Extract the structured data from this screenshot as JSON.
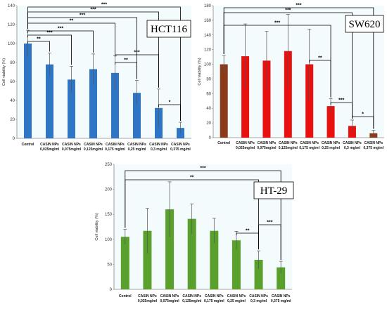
{
  "chart_data": [
    {
      "id": "hct116",
      "type": "bar",
      "title": "HCT116",
      "ylabel": "Cell viability (%)",
      "ylim": [
        0,
        140
      ],
      "yticks": [
        0,
        20,
        40,
        60,
        80,
        100,
        120,
        140
      ],
      "categories": [
        [
          "Control"
        ],
        [
          "CASIN NPs",
          "0,025mg/ml"
        ],
        [
          "CASIN NPs",
          "0,075mg/ml"
        ],
        [
          "CASIN NPs",
          "0,125mg/ml"
        ],
        [
          "CASIN NPs",
          "0,175 mg/ml"
        ],
        [
          "CASIN NPs",
          "0,25 mg/ml"
        ],
        [
          "CASIN NPs",
          "0,3 mg/ml"
        ],
        [
          "CASIN NPs",
          "0,375 mg/ml"
        ]
      ],
      "values": [
        100,
        78,
        62,
        73,
        69,
        48,
        32,
        11
      ],
      "errors": [
        14,
        12,
        14,
        16,
        18,
        13,
        20,
        6
      ],
      "colors": [
        "#2E75C6",
        "#2E75C6",
        "#2E75C6",
        "#2E75C6",
        "#2E75C6",
        "#2E75C6",
        "#2E75C6",
        "#2E75C6"
      ],
      "significance": [
        {
          "from": 0,
          "to": 7,
          "label": "***"
        },
        {
          "from": 0,
          "to": 6,
          "label": "***"
        },
        {
          "from": 0,
          "to": 5,
          "label": "***"
        },
        {
          "from": 0,
          "to": 4,
          "label": "**"
        },
        {
          "from": 0,
          "to": 3,
          "label": "***"
        },
        {
          "from": 0,
          "to": 2,
          "label": "***"
        },
        {
          "from": 0,
          "to": 1,
          "label": "**"
        },
        {
          "from": 4,
          "to": 5,
          "label": "**"
        },
        {
          "from": 4,
          "to": 6,
          "label": "***"
        },
        {
          "from": 6,
          "to": 7,
          "label": "*"
        }
      ]
    },
    {
      "id": "sw620",
      "type": "bar",
      "title": "SW620",
      "ylabel": "Cell viability (%)",
      "ylim": [
        0,
        180
      ],
      "yticks": [
        0,
        20,
        40,
        60,
        80,
        100,
        120,
        140,
        160,
        180
      ],
      "categories": [
        [
          "Control"
        ],
        [
          "CASIN NPs",
          "0,025mg/ml"
        ],
        [
          "CASIN NPs",
          "0,075mg/ml"
        ],
        [
          "CASIN NPs",
          "0,125mg/ml"
        ],
        [
          "CASIN NPs",
          "0,175 mg/ml"
        ],
        [
          "CASIN NPs",
          "0,25 mg/ml"
        ],
        [
          "CASIN NPs",
          "0,3 mg/ml"
        ],
        [
          "CASIN NPs",
          "0,375 mg/ml"
        ]
      ],
      "values": [
        100,
        111,
        105,
        118,
        100,
        43,
        16,
        6
      ],
      "errors": [
        12,
        44,
        40,
        50,
        48,
        10,
        8,
        4
      ],
      "colors": [
        "#8B3A1A",
        "#E8110F",
        "#E8110F",
        "#E8110F",
        "#E8110F",
        "#E8110F",
        "#E8110F",
        "#8B3A1A"
      ],
      "significance": [
        {
          "from": 0,
          "to": 7,
          "label": "***"
        },
        {
          "from": 0,
          "to": 6,
          "label": "***"
        },
        {
          "from": 0,
          "to": 5,
          "label": "***"
        },
        {
          "from": 4,
          "to": 5,
          "label": "**"
        },
        {
          "from": 5,
          "to": 6,
          "label": "***"
        },
        {
          "from": 6,
          "to": 7,
          "label": "*"
        }
      ]
    },
    {
      "id": "ht29",
      "type": "bar",
      "title": "HT-29",
      "ylabel": "Cell viability (%)",
      "ylim": [
        0,
        250
      ],
      "yticks": [
        0,
        50,
        100,
        150,
        200,
        250
      ],
      "categories": [
        [
          "Control"
        ],
        [
          "CASIN NPs",
          "0,025mg/ml"
        ],
        [
          "CASIN NPs",
          "0,075mg/ml"
        ],
        [
          "CASIN NPs",
          "0,125mg/ml"
        ],
        [
          "CASIN NPs",
          "0,175 mg/ml"
        ],
        [
          "CASIN NPs",
          "0,25 mg/ml"
        ],
        [
          "CASIN NPs",
          "0,3 mg/ml"
        ],
        [
          "CASIN NPs",
          "0,375 mg/ml"
        ]
      ],
      "values": [
        105,
        117,
        160,
        141,
        117,
        98,
        59,
        44
      ],
      "errors": [
        15,
        45,
        55,
        30,
        25,
        18,
        18,
        12
      ],
      "colors": [
        "#5AA02C",
        "#5AA02C",
        "#5AA02C",
        "#5AA02C",
        "#5AA02C",
        "#5AA02C",
        "#5AA02C",
        "#5AA02C"
      ],
      "significance": [
        {
          "from": 0,
          "to": 7,
          "label": "***"
        },
        {
          "from": 0,
          "to": 6,
          "label": "**"
        },
        {
          "from": 5,
          "to": 6,
          "label": "**"
        },
        {
          "from": 6,
          "to": 7,
          "label": "***"
        }
      ]
    }
  ]
}
